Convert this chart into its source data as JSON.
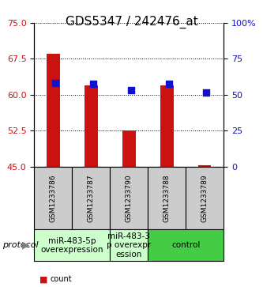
{
  "title": "GDS5347 / 242476_at",
  "samples": [
    "GSM1233786",
    "GSM1233787",
    "GSM1233790",
    "GSM1233788",
    "GSM1233789"
  ],
  "bar_values": [
    68.5,
    62.0,
    52.5,
    62.0,
    45.2
  ],
  "bar_base": 45.0,
  "percentile_values": [
    62.5,
    62.3,
    61.0,
    62.2,
    60.5
  ],
  "percentile_pct": [
    70,
    65,
    55,
    65,
    50
  ],
  "ylim": [
    45,
    75
  ],
  "ylim_right": [
    0,
    100
  ],
  "yticks_left": [
    45,
    52.5,
    60,
    67.5,
    75
  ],
  "yticks_right": [
    0,
    25,
    50,
    75,
    100
  ],
  "bar_color": "#cc1111",
  "dot_color": "#1111cc",
  "grid_color": "#000000",
  "bg_color": "#ffffff",
  "protocol_labels": [
    "miR-483-5p\noverexpression",
    "miR-483-3\np overexpr\nession",
    "control"
  ],
  "protocol_groups": [
    2,
    1,
    2
  ],
  "protocol_colors": [
    "#ccffcc",
    "#ccffcc",
    "#44cc44"
  ],
  "sample_bg": "#cccccc",
  "title_fontsize": 11,
  "tick_fontsize": 8,
  "label_fontsize": 8,
  "legend_fontsize": 7,
  "protocol_fontsize": 7.5
}
